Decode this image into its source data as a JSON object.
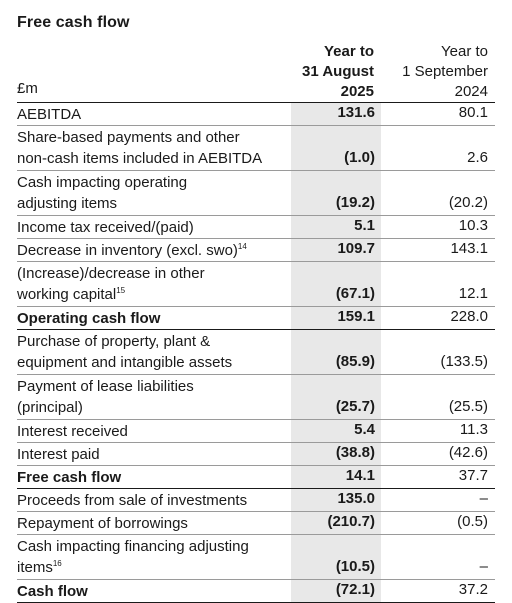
{
  "title": "Free cash flow",
  "header": {
    "unit_label": "£m",
    "col1": [
      "Year to",
      "31 August",
      "2025"
    ],
    "col2": [
      "Year to",
      "1 September",
      "2024"
    ]
  },
  "rows": [
    {
      "label": "AEBITDA",
      "v1": "131.6",
      "v2": "80.1",
      "bold": false,
      "lines": 1
    },
    {
      "label": "Share-based payments and other non-cash items included in AEBITDA",
      "v1": "(1.0)",
      "v2": "2.6",
      "bold": false,
      "lines": 2
    },
    {
      "label": "Cash impacting operating adjusting items",
      "v1": "(19.2)",
      "v2": "(20.2)",
      "bold": false,
      "lines": 2
    },
    {
      "label": "Income tax received/(paid)",
      "v1": "5.1",
      "v2": "10.3",
      "bold": false,
      "lines": 1
    },
    {
      "label": "Decrease in inventory (excl. swo)",
      "sup": "14",
      "v1": "109.7",
      "v2": "143.1",
      "bold": false,
      "lines": 1
    },
    {
      "label": "(Increase)/decrease in other working capital",
      "sup": "15",
      "v1": "(67.1)",
      "v2": "12.1",
      "bold": false,
      "lines": 2
    },
    {
      "label": "Operating cash flow",
      "v1": "159.1",
      "v2": "228.0",
      "bold": true,
      "lines": 1
    },
    {
      "label": "Purchase of property, plant & equipment and intangible assets",
      "v1": "(85.9)",
      "v2": "(133.5)",
      "bold": false,
      "lines": 2
    },
    {
      "label": "Payment of lease liabilities (principal)",
      "v1": "(25.7)",
      "v2": "(25.5)",
      "bold": false,
      "lines": 2
    },
    {
      "label": "Interest received",
      "v1": "5.4",
      "v2": "11.3",
      "bold": false,
      "lines": 1
    },
    {
      "label": "Interest paid",
      "v1": "(38.8)",
      "v2": "(42.6)",
      "bold": false,
      "lines": 1
    },
    {
      "label": "Free cash flow",
      "v1": "14.1",
      "v2": "37.7",
      "bold": true,
      "lines": 1
    },
    {
      "label": "Proceeds from sale of investments",
      "v1": "135.0",
      "v2": "–",
      "bold": false,
      "lines": 1
    },
    {
      "label": "Repayment of borrowings",
      "v1": "(210.7)",
      "v2": "(0.5)",
      "bold": false,
      "lines": 1
    },
    {
      "label": "Cash impacting financing adjusting items",
      "sup": "16",
      "v1": "(10.5)",
      "v2": "–",
      "bold": false,
      "lines": 2
    },
    {
      "label": "Cash flow",
      "v1": "(72.1)",
      "v2": "37.2",
      "bold": true,
      "lines": 1
    }
  ]
}
